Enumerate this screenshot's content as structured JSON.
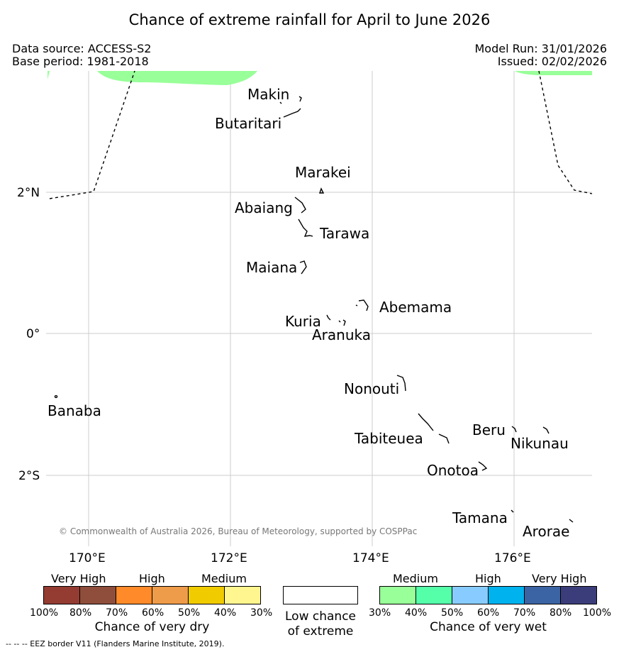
{
  "header": {
    "title": "Chance of extreme rainfall for April to June 2026",
    "data_source": "Data source: ACCESS-S2",
    "base_period": "Base period: 1981-2018",
    "model_run": "Model Run: 31/01/2026",
    "issued": "Issued: 02/02/2026"
  },
  "map": {
    "lat_labels": [
      "2°N",
      "0°",
      "2°S"
    ],
    "lon_labels": [
      "170°E",
      "172°E",
      "174°E",
      "176°E"
    ],
    "places": [
      {
        "id": "makin",
        "name": "Makin"
      },
      {
        "id": "butaritari",
        "name": "Butaritari"
      },
      {
        "id": "marakei",
        "name": "Marakei"
      },
      {
        "id": "abaiang",
        "name": "Abaiang"
      },
      {
        "id": "tarawa",
        "name": "Tarawa"
      },
      {
        "id": "maiana",
        "name": "Maiana"
      },
      {
        "id": "abemama",
        "name": "Abemama"
      },
      {
        "id": "kuria",
        "name": "Kuria"
      },
      {
        "id": "aranuka",
        "name": "Aranuka"
      },
      {
        "id": "nonouti",
        "name": "Nonouti"
      },
      {
        "id": "banaba",
        "name": "Banaba"
      },
      {
        "id": "tabiteuea",
        "name": "Tabiteuea"
      },
      {
        "id": "beru",
        "name": "Beru"
      },
      {
        "id": "nikunau",
        "name": "Nikunau"
      },
      {
        "id": "onotoa",
        "name": "Onotoa"
      },
      {
        "id": "tamana",
        "name": "Tamana"
      },
      {
        "id": "arorae",
        "name": "Arorae"
      }
    ],
    "copyright": "© Commonwealth of Australia 2026, Bureau of Meteorology, supported by COSPPac",
    "wet_fill_color": "#99ff99"
  },
  "legend": {
    "dry": {
      "categories": [
        "Very High",
        "High",
        "Medium"
      ],
      "colors": [
        "#943c32",
        "#8f4e3b",
        "#fe8a2a",
        "#ee9b4a",
        "#f0cb00",
        "#fff68f"
      ],
      "ticks": [
        "100%",
        "80%",
        "70%",
        "60%",
        "50%",
        "40%",
        "30%"
      ],
      "caption": "Chance of very dry"
    },
    "low": {
      "caption_line1": "Low chance",
      "caption_line2": "of extreme"
    },
    "wet": {
      "categories": [
        "Medium",
        "High",
        "Very High"
      ],
      "colors": [
        "#99ff99",
        "#55ffaa",
        "#88ccff",
        "#00b2ee",
        "#3b64a4",
        "#3b3d7b"
      ],
      "ticks": [
        "30%",
        "40%",
        "50%",
        "60%",
        "70%",
        "80%",
        "100%"
      ],
      "caption": "Chance of very wet"
    }
  },
  "footnote": "--  --  -- EEZ border V11 (Flanders Marine Institute, 2019)."
}
